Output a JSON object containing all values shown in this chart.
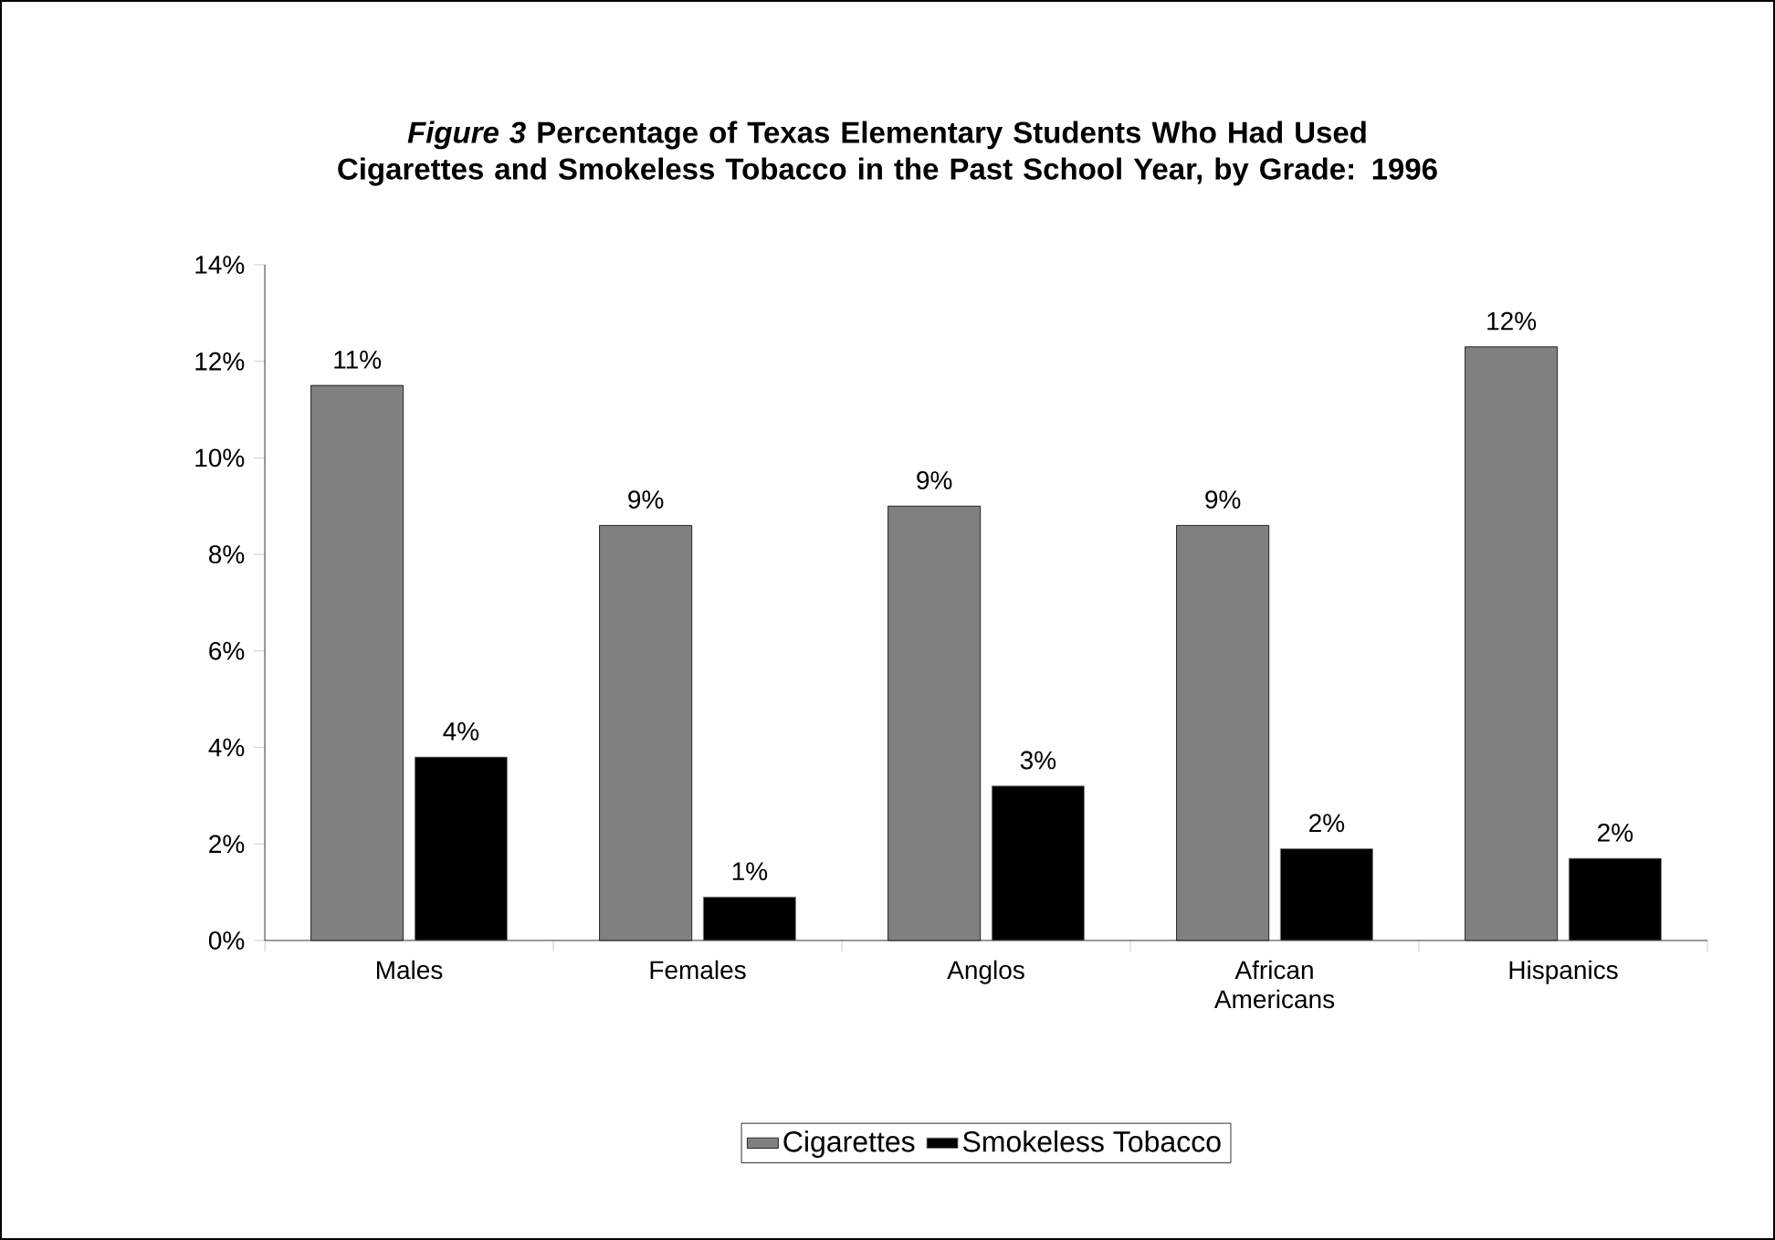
{
  "chart_data": {
    "type": "bar",
    "title": "*Figure 3* Percentage of Texas Elementary Students Who Had Used Cigarettes and Smokeless Tobacco in the Past School Year, by Grade: 1996",
    "categories": [
      "Males",
      "Females",
      "Anglos",
      "African Americans",
      "Hispanics"
    ],
    "series": [
      {
        "name": "Cigarettes",
        "color": "#808080",
        "values": [
          11.5,
          8.6,
          9.0,
          8.6,
          12.3
        ],
        "value_labels": [
          "11%",
          "9%",
          "9%",
          "9%",
          "12%"
        ]
      },
      {
        "name": "Smokeless Tobacco",
        "color": "#000000",
        "values": [
          3.8,
          0.9,
          3.2,
          1.9,
          1.7
        ],
        "value_labels": [
          "4%",
          "1%",
          "3%",
          "2%",
          "2%"
        ]
      }
    ],
    "ylim": [
      0,
      14
    ],
    "yticks": [
      {
        "value": 0,
        "label": "0%"
      },
      {
        "value": 2,
        "label": "2%"
      },
      {
        "value": 4,
        "label": "4%"
      },
      {
        "value": 6,
        "label": "6%"
      },
      {
        "value": 8,
        "label": "8%"
      },
      {
        "value": 10,
        "label": "10%"
      },
      {
        "value": 12,
        "label": "12%"
      },
      {
        "value": 14,
        "label": "14%"
      }
    ],
    "legend": "bottom",
    "grid": false
  }
}
